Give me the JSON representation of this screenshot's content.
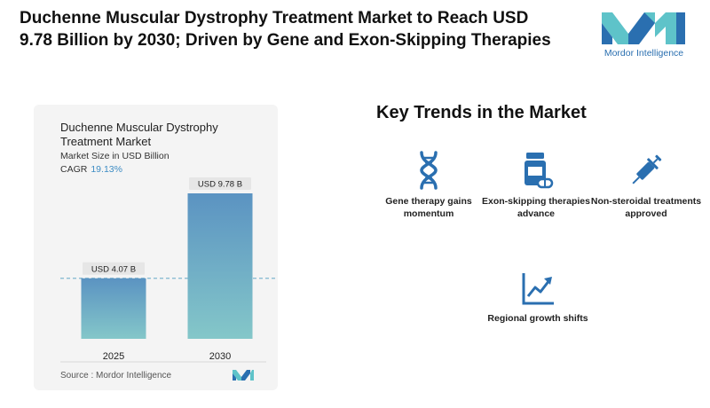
{
  "headline": "Duchenne Muscular Dystrophy Treatment Market to Reach USD 9.78 Billion by 2030; Driven by Gene and Exon-Skipping Therapies",
  "brand": {
    "name": "Mordor Intelligence",
    "color": "#2a6fb0",
    "accent": "#5ec3c9"
  },
  "chart": {
    "title": "Duchenne Muscular Dystrophy Treatment Market",
    "subtitle": "Market Size in USD Billion",
    "cagr_label": "CAGR",
    "cagr_value": "19.13%",
    "source": "Source :  Mordor Intelligence"
  },
  "chart_data": {
    "type": "bar",
    "title": "Duchenne Muscular Dystrophy Treatment Market",
    "ylabel": "Market Size in USD Billion",
    "categories": [
      "2025",
      "2030"
    ],
    "values": [
      4.07,
      9.78
    ],
    "data_labels": [
      "USD 4.07 B",
      "USD 9.78 B"
    ],
    "ylim": [
      0,
      9.78
    ],
    "grid": false,
    "reference_line": 4.07,
    "bar_color_top": "#5b93c2",
    "bar_color_bottom": "#84c7c9"
  },
  "trends": {
    "title": "Key Trends in the Market",
    "items": [
      {
        "label": "Gene therapy gains momentum",
        "icon": "dna-icon"
      },
      {
        "label": "Exon-skipping therapies advance",
        "icon": "pill-bottle-icon"
      },
      {
        "label": "Non-steroidal treatments approved",
        "icon": "syringe-icon"
      },
      {
        "label": "Regional growth shifts",
        "icon": "growth-chart-icon"
      }
    ]
  }
}
